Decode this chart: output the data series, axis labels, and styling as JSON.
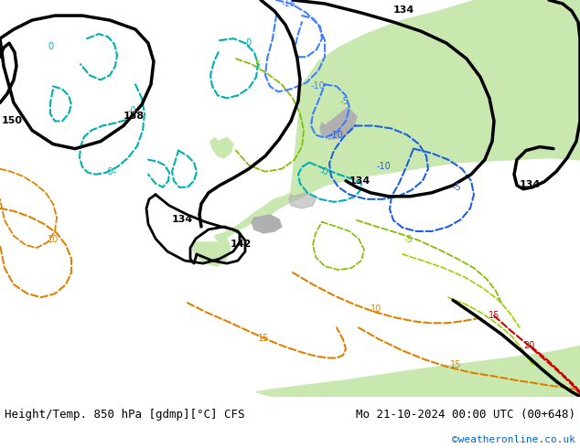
{
  "title_left": "Height/Temp. 850 hPa [gdmp][°C] CFS",
  "title_right": "Mo 21-10-2024 00:00 UTC (00+648)",
  "credit": "©weatheronline.co.uk",
  "fig_width": 6.34,
  "fig_height": 4.9,
  "dpi": 100,
  "title_fontsize": 9,
  "credit_fontsize": 8,
  "credit_color": "#0066cc",
  "bg_color": "#e8e8e8",
  "land_color": "#c8e8b0",
  "mountain_color": "#b0b0b0"
}
